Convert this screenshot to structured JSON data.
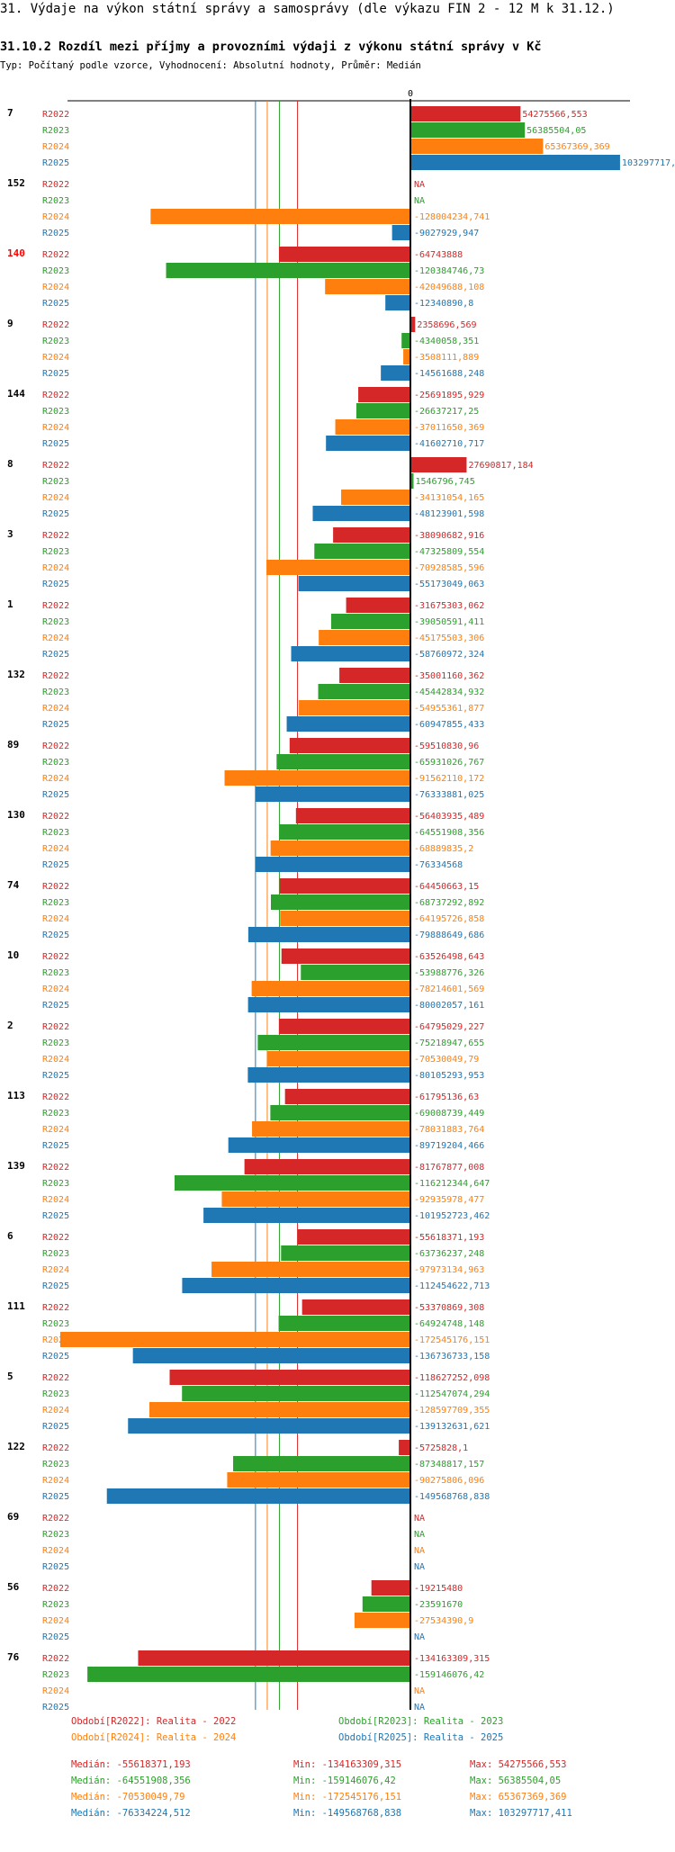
{
  "header": {
    "title": "31. Výdaje na výkon státní správy a samosprávy (dle výkazu FIN 2 - 12 M k 31.12.)",
    "subtitle": "31.10.2 Rozdíl mezi příjmy a provozními výdaji z výkonu státní správy v Kč",
    "meta": "Typ: Počítaný podle vzorce, Vyhodnocení: Absolutní hodnoty, Průměr: Medián"
  },
  "colors": {
    "R2022": "#d62728",
    "R2023": "#2ca02c",
    "R2024": "#ff7f0e",
    "R2025": "#1f77b4",
    "text": "#000000"
  },
  "chart_data": {
    "type": "bar",
    "orientation": "horizontal",
    "zero_label": "0",
    "na_label": "NA",
    "series_names": [
      "R2022",
      "R2023",
      "R2024",
      "R2025"
    ],
    "medians": [
      -55618371.193,
      -64551908.356,
      -70530049.79,
      -76334224.512
    ],
    "groups": [
      {
        "id": "7",
        "highlight": false,
        "values": [
          54275566.553,
          56385504.05,
          65367369.369,
          103297717.411
        ],
        "labels": [
          "54275566,553",
          "56385504,05",
          "65367369,369",
          "103297717,4"
        ]
      },
      {
        "id": "152",
        "highlight": false,
        "values": [
          null,
          null,
          -128004234.741,
          -9027929.947
        ],
        "labels": [
          "NA",
          "NA",
          "-128004234,741",
          "-9027929,947"
        ]
      },
      {
        "id": "140",
        "highlight": true,
        "values": [
          -64743888,
          -120384746.73,
          -42049688.108,
          -12340890.8
        ],
        "labels": [
          "-64743888",
          "-120384746,73",
          "-42049688,108",
          "-12340890,8"
        ]
      },
      {
        "id": "9",
        "highlight": false,
        "values": [
          2358696.569,
          -4340058.351,
          -3508111.889,
          -14561688.248
        ],
        "labels": [
          "2358696,569",
          "-4340058,351",
          "-3508111,889",
          "-14561688,248"
        ]
      },
      {
        "id": "144",
        "highlight": false,
        "values": [
          -25691895.929,
          -26637217.25,
          -37011650.369,
          -41602710.717
        ],
        "labels": [
          "-25691895,929",
          "-26637217,25",
          "-37011650,369",
          "-41602710,717"
        ]
      },
      {
        "id": "8",
        "highlight": false,
        "values": [
          27690817.184,
          1546796.745,
          -34131054.165,
          -48123901.598
        ],
        "labels": [
          "27690817,184",
          "1546796,745",
          "-34131054,165",
          "-48123901,598"
        ]
      },
      {
        "id": "3",
        "highlight": false,
        "values": [
          -38090682.916,
          -47325809.554,
          -70928585.596,
          -55173049.063
        ],
        "labels": [
          "-38090682,916",
          "-47325809,554",
          "-70928585,596",
          "-55173049,063"
        ]
      },
      {
        "id": "1",
        "highlight": false,
        "values": [
          -31675303.062,
          -39050591.411,
          -45175503.306,
          -58760972.324
        ],
        "labels": [
          "-31675303,062",
          "-39050591,411",
          "-45175503,306",
          "-58760972,324"
        ]
      },
      {
        "id": "132",
        "highlight": false,
        "values": [
          -35001160.362,
          -45442834.932,
          -54955361.877,
          -60947855.433
        ],
        "labels": [
          "-35001160,362",
          "-45442834,932",
          "-54955361,877",
          "-60947855,433"
        ]
      },
      {
        "id": "89",
        "highlight": false,
        "values": [
          -59510830.96,
          -65931026.767,
          -91562110.172,
          -76333881.025
        ],
        "labels": [
          "-59510830,96",
          "-65931026,767",
          "-91562110,172",
          "-76333881,025"
        ]
      },
      {
        "id": "130",
        "highlight": false,
        "values": [
          -56403935.489,
          -64551908.356,
          -68889835.2,
          -76334568
        ],
        "labels": [
          "-56403935,489",
          "-64551908,356",
          "-68889835,2",
          "-76334568"
        ]
      },
      {
        "id": "74",
        "highlight": false,
        "values": [
          -64450663.15,
          -68737292.892,
          -64195726.858,
          -79888649.686
        ],
        "labels": [
          "-64450663,15",
          "-68737292,892",
          "-64195726,858",
          "-79888649,686"
        ]
      },
      {
        "id": "10",
        "highlight": false,
        "values": [
          -63526498.643,
          -53988776.326,
          -78214601.569,
          -80002057.161
        ],
        "labels": [
          "-63526498,643",
          "-53988776,326",
          "-78214601,569",
          "-80002057,161"
        ]
      },
      {
        "id": "2",
        "highlight": false,
        "values": [
          -64795029.227,
          -75218947.655,
          -70530049.79,
          -80105293.953
        ],
        "labels": [
          "-64795029,227",
          "-75218947,655",
          "-70530049,79",
          "-80105293,953"
        ]
      },
      {
        "id": "113",
        "highlight": false,
        "values": [
          -61795136.63,
          -69008739.449,
          -78031883.764,
          -89719204.466
        ],
        "labels": [
          "-61795136,63",
          "-69008739,449",
          "-78031883,764",
          "-89719204,466"
        ]
      },
      {
        "id": "139",
        "highlight": false,
        "values": [
          -81767877.008,
          -116212344.647,
          -92935978.477,
          -101952723.462
        ],
        "labels": [
          "-81767877,008",
          "-116212344,647",
          "-92935978,477",
          "-101952723,462"
        ]
      },
      {
        "id": "6",
        "highlight": false,
        "values": [
          -55618371.193,
          -63736237.248,
          -97973134.963,
          -112454622.713
        ],
        "labels": [
          "-55618371,193",
          "-63736237,248",
          "-97973134,963",
          "-112454622,713"
        ]
      },
      {
        "id": "111",
        "highlight": false,
        "values": [
          -53370869.308,
          -64924748.148,
          -172545176.151,
          -136736733.158
        ],
        "labels": [
          "-53370869,308",
          "-64924748,148",
          "-172545176,151",
          "-136736733,158"
        ]
      },
      {
        "id": "5",
        "highlight": false,
        "values": [
          -118627252.098,
          -112547074.294,
          -128597709.355,
          -139132631.621
        ],
        "labels": [
          "-118627252,098",
          "-112547074,294",
          "-128597709,355",
          "-139132631,621"
        ]
      },
      {
        "id": "122",
        "highlight": false,
        "values": [
          -5725828.1,
          -87348817.157,
          -90275806.096,
          -149568768.838
        ],
        "labels": [
          "-5725828,1",
          "-87348817,157",
          "-90275806,096",
          "-149568768,838"
        ]
      },
      {
        "id": "69",
        "highlight": false,
        "values": [
          null,
          null,
          null,
          null
        ],
        "labels": [
          "NA",
          "NA",
          "NA",
          "NA"
        ]
      },
      {
        "id": "56",
        "highlight": false,
        "values": [
          -19215480,
          -23591670,
          -27534390.9,
          null
        ],
        "labels": [
          "-19215480",
          "-23591670",
          "-27534390,9",
          "NA"
        ]
      },
      {
        "id": "76",
        "highlight": false,
        "values": [
          -134163309.315,
          -159146076.42,
          null,
          null
        ],
        "labels": [
          "-134163309,315",
          "-159146076,42",
          "NA",
          "NA"
        ]
      }
    ]
  },
  "legend": {
    "items": [
      "Období[R2022]: Realita - 2022",
      "Období[R2023]: Realita - 2023",
      "Období[R2024]: Realita - 2024",
      "Období[R2025]: Realita - 2025"
    ]
  },
  "stats": [
    {
      "median": "Medián: -55618371,193",
      "min": "Min: -134163309,315",
      "max": "Max: 54275566,553"
    },
    {
      "median": "Medián: -64551908,356",
      "min": "Min: -159146076,42",
      "max": "Max: 56385504,05"
    },
    {
      "median": "Medián: -70530049,79",
      "min": "Min: -172545176,151",
      "max": "Max: 65367369,369"
    },
    {
      "median": "Medián: -76334224,512",
      "min": "Min: -149568768,838",
      "max": "Max: 103297717,411"
    }
  ]
}
